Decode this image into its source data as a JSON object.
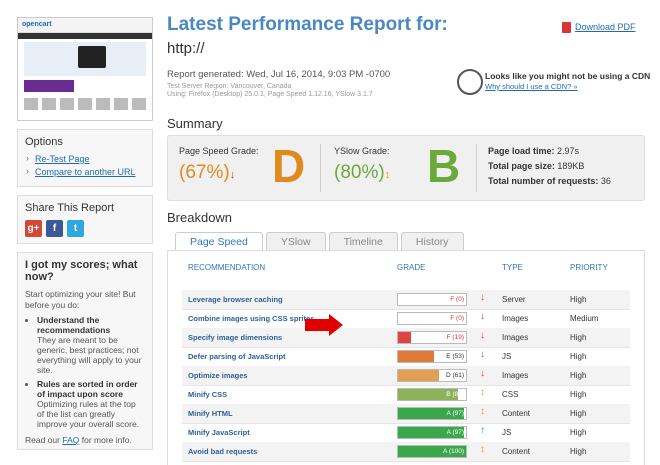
{
  "thumbnail": {
    "brand": "opencart"
  },
  "sidebar": {
    "options_title": "Options",
    "options_links": [
      "Re-Test Page",
      "Compare to another URL"
    ],
    "share_title": "Share This Report",
    "scores": {
      "title": "I got my scores; what now?",
      "intro": "Start optimizing your site! But before you do:",
      "bullet1_title": "Understand the recommendations",
      "bullet1_text": "They are meant to be generic, best practices; not everything will apply to your site.",
      "bullet2_title": "Rules are sorted in order of impact upon score",
      "bullet2_text": "Optimizing rules at the top of the list can greatly improve your overall score.",
      "faq_prefix": "Read our",
      "faq_link": "FAQ",
      "faq_suffix": "for more info."
    }
  },
  "report": {
    "title": "Latest Performance Report for:",
    "url": "http://",
    "pdf_label": "Download PDF",
    "generated": "Report generated: Wed, Jul 16, 2014, 9:03 PM -0700",
    "region": "Test Server Region: Vancouver, Canada",
    "using": "Using: Firefox (Desktop) 25.0.1, Page Speed 1.12.16, YSlow 3.1.7",
    "cdn_title": "Looks like you might not be using a CDN",
    "cdn_link": "Why should I use a CDN? »"
  },
  "summary": {
    "heading": "Summary",
    "pagespeed_label": "Page Speed Grade:",
    "pagespeed_pct": "(67%)",
    "pagespeed_grade": "D",
    "yslow_label": "YSlow Grade:",
    "yslow_pct": "(80%)",
    "yslow_grade": "B",
    "load_time_label": "Page load time:",
    "load_time": "2.97s",
    "size_label": "Total page size:",
    "size": "189KB",
    "requests_label": "Total number of requests:",
    "requests": "36",
    "colors": {
      "orange": "#e08a1e",
      "green": "#6aaa3a"
    }
  },
  "breakdown": {
    "heading": "Breakdown",
    "tabs": [
      "Page Speed",
      "YSlow",
      "Timeline",
      "History"
    ],
    "active_tab": "Page Speed",
    "columns": [
      "RECOMMENDATION",
      "GRADE",
      "TYPE",
      "PRIORITY"
    ],
    "rows": [
      {
        "rec": "Leverage browser caching",
        "grade": "F (0)",
        "score": 0,
        "trend": "down",
        "type": "Server",
        "priority": "High"
      },
      {
        "rec": "Combine images using CSS sprites",
        "grade": "F (0)",
        "score": 0,
        "trend": "down",
        "type": "Images",
        "priority": "Medium"
      },
      {
        "rec": "Specify image dimensions",
        "grade": "F (19)",
        "score": 19,
        "trend": "down",
        "type": "Images",
        "priority": "High"
      },
      {
        "rec": "Defer parsing of JavaScript",
        "grade": "E (53)",
        "score": 53,
        "trend": "down",
        "type": "JS",
        "priority": "High"
      },
      {
        "rec": "Optimize images",
        "grade": "D (61)",
        "score": 61,
        "trend": "down",
        "type": "Images",
        "priority": "High"
      },
      {
        "rec": "Minify CSS",
        "grade": "B (88)",
        "score": 88,
        "trend": "neutral",
        "type": "CSS",
        "priority": "High"
      },
      {
        "rec": "Minify HTML",
        "grade": "A (97)",
        "score": 97,
        "trend": "neutral",
        "type": "Content",
        "priority": "High"
      },
      {
        "rec": "Minify JavaScript",
        "grade": "A (97)",
        "score": 97,
        "trend": "up",
        "type": "JS",
        "priority": "High"
      },
      {
        "rec": "Avoid bad requests",
        "grade": "A (100)",
        "score": 100,
        "trend": "neutral",
        "type": "Content",
        "priority": "High"
      }
    ]
  }
}
